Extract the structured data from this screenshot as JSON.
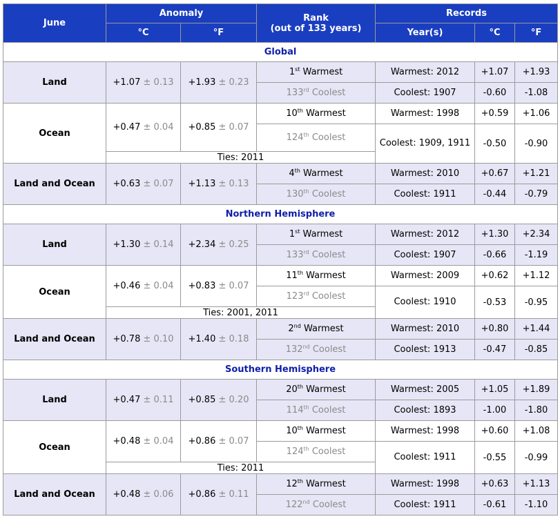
{
  "header": {
    "month": "June",
    "anomaly": "Anomaly",
    "rank": "Rank",
    "rank_sub": "(out of 133 years)",
    "records": "Records",
    "unit_c": "°C",
    "unit_f": "°F",
    "years": "Year(s)"
  },
  "pm": "±",
  "regions": [
    {
      "name": "Global",
      "rows": [
        {
          "label": "Land",
          "ac": "+1.07",
          "acu": "0.13",
          "af": "+1.93",
          "afu": "0.23",
          "warm_n": "1",
          "warm_sfx": "st",
          "warm_txt": "Warmest",
          "cool_n": "133",
          "cool_sfx": "rd",
          "cool_txt": "Coolest",
          "rec_warm": "Warmest: 2012",
          "rec_warm_c": "+1.07",
          "rec_warm_f": "+1.93",
          "rec_cool": "Coolest: 1907",
          "rec_cool_c": "-0.60",
          "rec_cool_f": "-1.08",
          "ties": ""
        },
        {
          "label": "Ocean",
          "ac": "+0.47",
          "acu": "0.04",
          "af": "+0.85",
          "afu": "0.07",
          "warm_n": "10",
          "warm_sfx": "th",
          "warm_txt": "Warmest",
          "cool_n": "124",
          "cool_sfx": "th",
          "cool_txt": "Coolest",
          "rec_warm": "Warmest: 1998",
          "rec_warm_c": "+0.59",
          "rec_warm_f": "+1.06",
          "rec_cool": "Coolest: 1909, 1911",
          "rec_cool_c": "-0.50",
          "rec_cool_f": "-0.90",
          "ties": "Ties: 2011"
        },
        {
          "label": "Land and Ocean",
          "ac": "+0.63",
          "acu": "0.07",
          "af": "+1.13",
          "afu": "0.13",
          "warm_n": "4",
          "warm_sfx": "th",
          "warm_txt": "Warmest",
          "cool_n": "130",
          "cool_sfx": "th",
          "cool_txt": "Coolest",
          "rec_warm": "Warmest: 2010",
          "rec_warm_c": "+0.67",
          "rec_warm_f": "+1.21",
          "rec_cool": "Coolest: 1911",
          "rec_cool_c": "-0.44",
          "rec_cool_f": "-0.79",
          "ties": ""
        }
      ]
    },
    {
      "name": "Northern Hemisphere",
      "rows": [
        {
          "label": "Land",
          "ac": "+1.30",
          "acu": "0.14",
          "af": "+2.34",
          "afu": "0.25",
          "warm_n": "1",
          "warm_sfx": "st",
          "warm_txt": "Warmest",
          "cool_n": "133",
          "cool_sfx": "rd",
          "cool_txt": "Coolest",
          "rec_warm": "Warmest: 2012",
          "rec_warm_c": "+1.30",
          "rec_warm_f": "+2.34",
          "rec_cool": "Coolest: 1907",
          "rec_cool_c": "-0.66",
          "rec_cool_f": "-1.19",
          "ties": ""
        },
        {
          "label": "Ocean",
          "ac": "+0.46",
          "acu": "0.04",
          "af": "+0.83",
          "afu": "0.07",
          "warm_n": "11",
          "warm_sfx": "th",
          "warm_txt": "Warmest",
          "cool_n": "123",
          "cool_sfx": "rd",
          "cool_txt": "Coolest",
          "rec_warm": "Warmest: 2009",
          "rec_warm_c": "+0.62",
          "rec_warm_f": "+1.12",
          "rec_cool": "Coolest: 1910",
          "rec_cool_c": "-0.53",
          "rec_cool_f": "-0.95",
          "ties": "Ties: 2001, 2011"
        },
        {
          "label": "Land and Ocean",
          "ac": "+0.78",
          "acu": "0.10",
          "af": "+1.40",
          "afu": "0.18",
          "warm_n": "2",
          "warm_sfx": "nd",
          "warm_txt": "Warmest",
          "cool_n": "132",
          "cool_sfx": "nd",
          "cool_txt": "Coolest",
          "rec_warm": "Warmest: 2010",
          "rec_warm_c": "+0.80",
          "rec_warm_f": "+1.44",
          "rec_cool": "Coolest: 1913",
          "rec_cool_c": "-0.47",
          "rec_cool_f": "-0.85",
          "ties": ""
        }
      ]
    },
    {
      "name": "Southern Hemisphere",
      "rows": [
        {
          "label": "Land",
          "ac": "+0.47",
          "acu": "0.11",
          "af": "+0.85",
          "afu": "0.20",
          "warm_n": "20",
          "warm_sfx": "th",
          "warm_txt": "Warmest",
          "cool_n": "114",
          "cool_sfx": "th",
          "cool_txt": "Coolest",
          "rec_warm": "Warmest: 2005",
          "rec_warm_c": "+1.05",
          "rec_warm_f": "+1.89",
          "rec_cool": "Coolest: 1893",
          "rec_cool_c": "-1.00",
          "rec_cool_f": "-1.80",
          "ties": ""
        },
        {
          "label": "Ocean",
          "ac": "+0.48",
          "acu": "0.04",
          "af": "+0.86",
          "afu": "0.07",
          "warm_n": "10",
          "warm_sfx": "th",
          "warm_txt": "Warmest",
          "cool_n": "124",
          "cool_sfx": "th",
          "cool_txt": "Coolest",
          "rec_warm": "Warmest: 1998",
          "rec_warm_c": "+0.60",
          "rec_warm_f": "+1.08",
          "rec_cool": "Coolest: 1911",
          "rec_cool_c": "-0.55",
          "rec_cool_f": "-0.99",
          "ties": "Ties: 2011"
        },
        {
          "label": "Land and Ocean",
          "ac": "+0.48",
          "acu": "0.06",
          "af": "+0.86",
          "afu": "0.11",
          "warm_n": "12",
          "warm_sfx": "th",
          "warm_txt": "Warmest",
          "cool_n": "122",
          "cool_sfx": "nd",
          "cool_txt": "Coolest",
          "rec_warm": "Warmest: 1998",
          "rec_warm_c": "+0.63",
          "rec_warm_f": "+1.13",
          "rec_cool": "Coolest: 1911",
          "rec_cool_c": "-0.61",
          "rec_cool_f": "-1.10",
          "ties": ""
        }
      ]
    }
  ]
}
